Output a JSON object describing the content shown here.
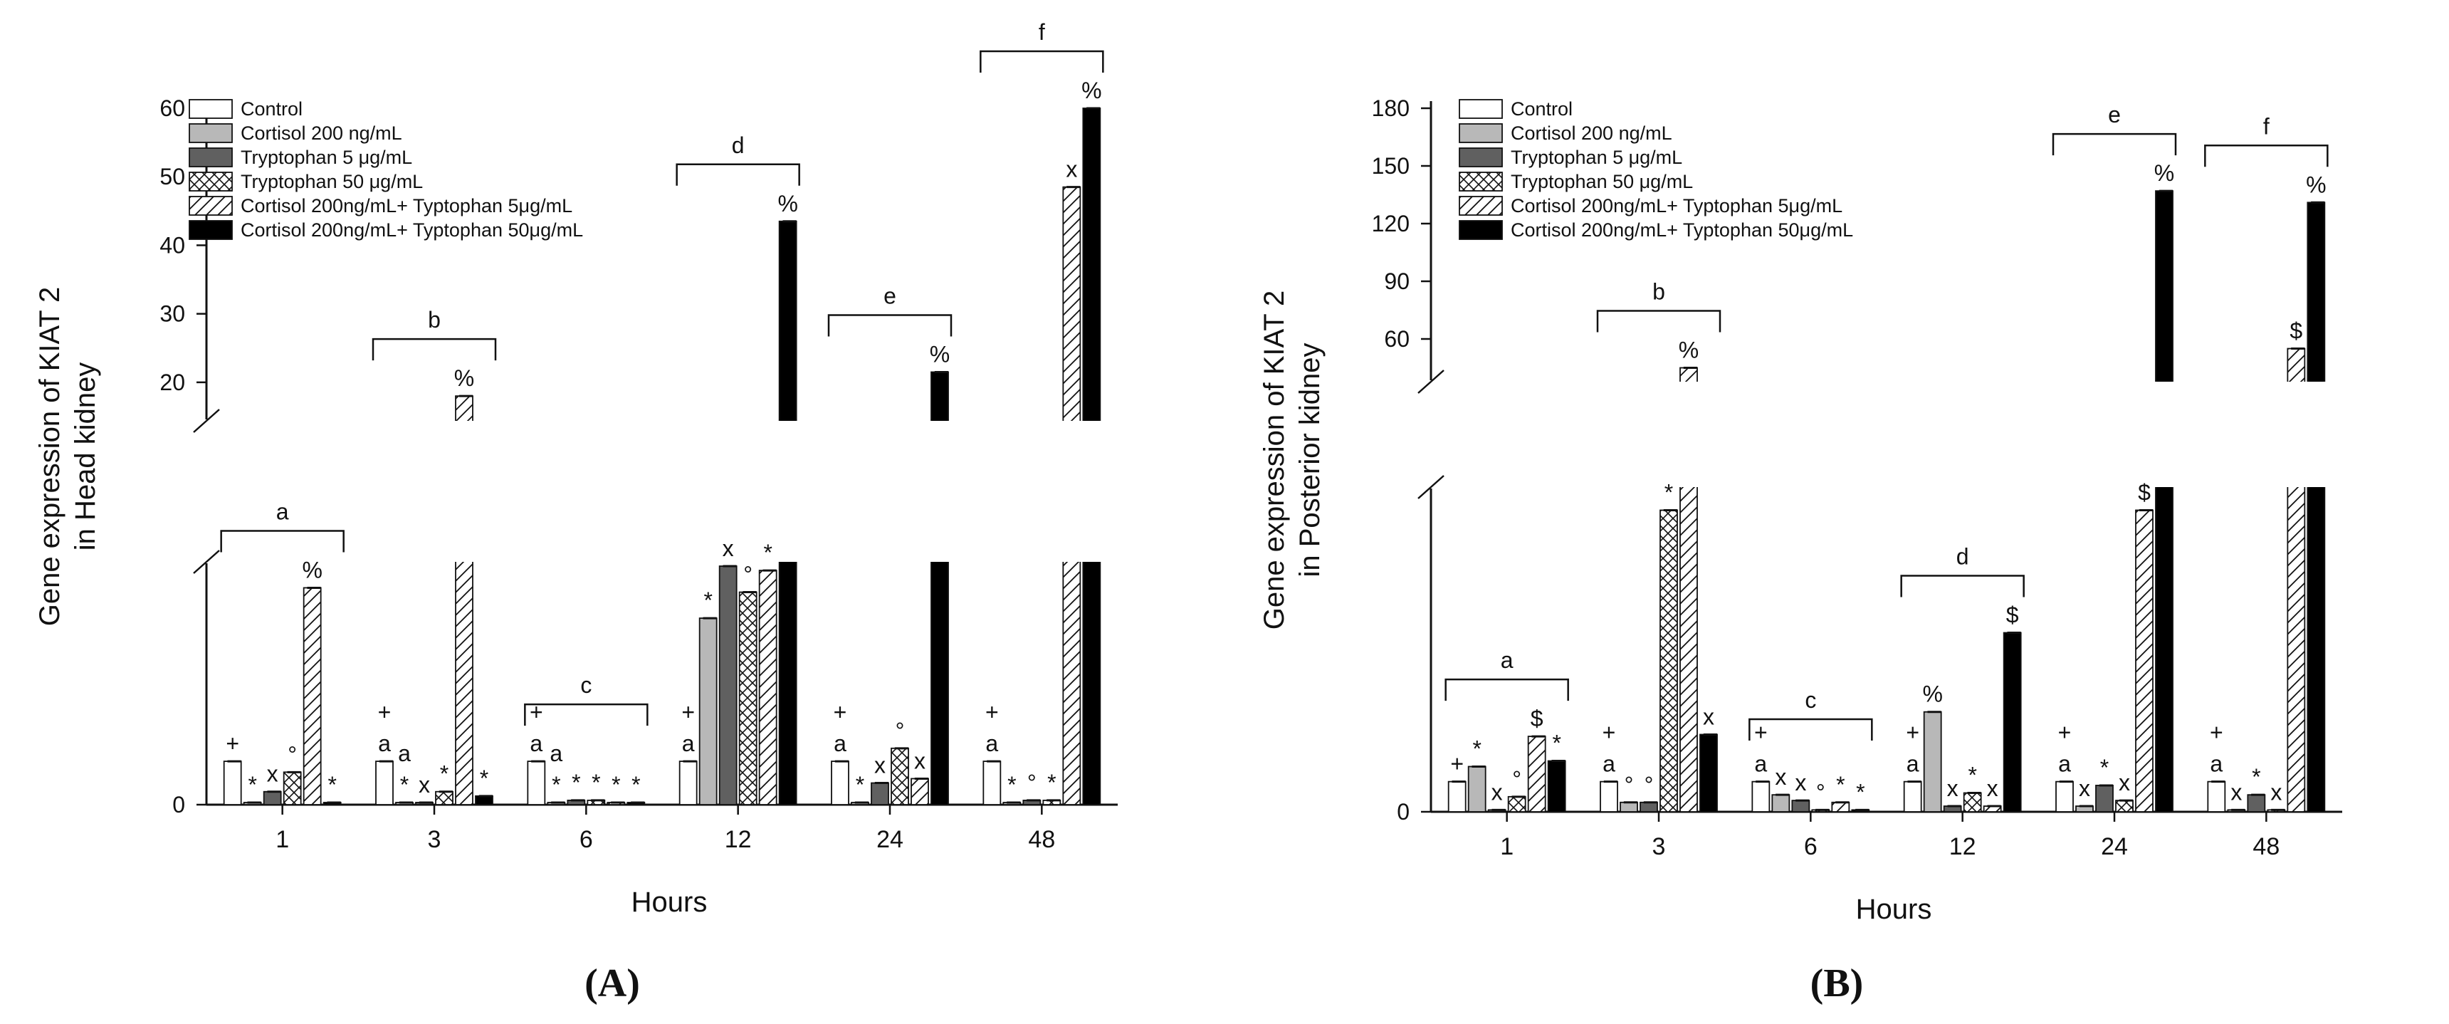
{
  "chart_data": [
    {
      "type": "bar",
      "panel_label": "(A)",
      "xlabel": "Hours",
      "ylabel_line1": "Gene expression of KIAT 2",
      "ylabel_line2": "in Head kidney",
      "y_axis_break": true,
      "lower_segment_ylim": [
        0,
        5.5
      ],
      "upper_segment_ylim": [
        15,
        60
      ],
      "ytick_labels": [
        "0",
        "20",
        "30",
        "40",
        "50",
        "60"
      ],
      "categories": [
        "1",
        "3",
        "6",
        "12",
        "24",
        "48"
      ],
      "legend": [
        "Control",
        "Cortisol 200 ng/mL",
        "Tryptophan 5 μg/mL",
        "Tryptophan 50 μg/mL",
        "Cortisol 200ng/mL+ Typtophan 5μg/mL",
        "Cortisol 200ng/mL+ Typtophan 50μg/mL"
      ],
      "legend_position": "top-left",
      "series": [
        {
          "name": "Control",
          "values": [
            1,
            1,
            1,
            1,
            1,
            1
          ]
        },
        {
          "name": "Cortisol 200 ng/mL",
          "values": [
            0.05,
            0.05,
            0.05,
            4.3,
            0.05,
            0.05
          ]
        },
        {
          "name": "Tryptophan 5 μg/mL",
          "values": [
            0.3,
            0.05,
            0.1,
            5.5,
            0.5,
            0.1
          ]
        },
        {
          "name": "Tryptophan 50 μg/mL",
          "values": [
            0.75,
            0.3,
            0.1,
            4.9,
            1.3,
            0.1
          ]
        },
        {
          "name": "Cortisol 200ng/mL+ Typtophan 5μg/mL",
          "values": [
            5.0,
            18,
            0.05,
            5.4,
            0.6,
            48.5
          ]
        },
        {
          "name": "Cortisol 200ng/mL+ Typtophan 50μg/mL",
          "values": [
            0.05,
            0.2,
            0.05,
            43.5,
            21.5,
            60
          ]
        }
      ],
      "brackets": [
        {
          "group": "1",
          "label": "a"
        },
        {
          "group": "3",
          "label": "b"
        },
        {
          "group": "6",
          "label": "c"
        },
        {
          "group": "12",
          "label": "d"
        },
        {
          "group": "24",
          "label": "e"
        },
        {
          "group": "48",
          "label": "f"
        }
      ],
      "markers": [
        [
          "+",
          "*",
          "x",
          "°",
          "%",
          "*"
        ],
        [
          "+ a",
          "a *",
          "x",
          "*",
          "%",
          "*"
        ],
        [
          "+ a",
          "a *",
          "*",
          "*",
          "*",
          "*"
        ],
        [
          "+ a",
          "*",
          "x",
          "°",
          "*",
          "%"
        ],
        [
          "+ a",
          "*",
          "x",
          "°",
          "x",
          "%"
        ],
        [
          "+ a",
          "*",
          "°",
          "*",
          "x",
          "%"
        ]
      ]
    },
    {
      "type": "bar",
      "panel_label": "(B)",
      "xlabel": "Hours",
      "ylabel_line1": "Gene expression of KIAT 2",
      "ylabel_line2": "in Posterior kidney",
      "y_axis_break": true,
      "lower_segment_ylim": [
        0,
        17
      ],
      "upper_segment_ylim": [
        40,
        180
      ],
      "ytick_labels": [
        "0",
        "60",
        "90",
        "120",
        "150",
        "180"
      ],
      "categories": [
        "1",
        "3",
        "6",
        "12",
        "24",
        "48"
      ],
      "legend": [
        "Control",
        "Cortisol 200 ng/mL",
        "Tryptophan 5 μg/mL",
        "Tryptophan 50 μg/mL",
        "Cortisol 200ng/mL+ Typtophan 5μg/mL",
        "Cortisol 200ng/mL+ Typtophan 50μg/mL"
      ],
      "legend_position": "top-left",
      "series": [
        {
          "name": "Control",
          "values": [
            1.6,
            1.6,
            1.6,
            1.6,
            1.6,
            1.6
          ]
        },
        {
          "name": "Cortisol 200 ng/mL",
          "values": [
            2.4,
            0.5,
            0.9,
            5.3,
            0.3,
            0.1
          ]
        },
        {
          "name": "Tryptophan 5 μg/mL",
          "values": [
            0.1,
            0.5,
            0.6,
            0.3,
            1.4,
            0.9
          ]
        },
        {
          "name": "Tryptophan 50 μg/mL",
          "values": [
            0.8,
            16,
            0.1,
            1.0,
            0.6,
            0.1
          ]
        },
        {
          "name": "Cortisol 200ng/mL+ Typtophan 5μg/mL",
          "values": [
            4.0,
            45,
            0.5,
            0.3,
            16,
            55
          ]
        },
        {
          "name": "Cortisol 200ng/mL+ Typtophan 50μg/mL",
          "values": [
            2.7,
            4.1,
            0.1,
            9.5,
            137,
            131
          ]
        }
      ],
      "brackets": [
        {
          "group": "1",
          "label": "a"
        },
        {
          "group": "3",
          "label": "b"
        },
        {
          "group": "6",
          "label": "c"
        },
        {
          "group": "12",
          "label": "d"
        },
        {
          "group": "24",
          "label": "e"
        },
        {
          "group": "48",
          "label": "f"
        }
      ],
      "markers": [
        [
          "+",
          "*",
          "x",
          "°",
          "$",
          "*"
        ],
        [
          "+ a",
          "°",
          "°",
          "*",
          "%",
          "x"
        ],
        [
          "+ a",
          "x",
          "x",
          "°",
          "*",
          "*"
        ],
        [
          "+ a",
          "%",
          "x",
          "*",
          "x",
          "$"
        ],
        [
          "+ a",
          "x",
          "*",
          "x",
          "$",
          "%"
        ],
        [
          "+ a",
          "x",
          "*",
          "x",
          "$",
          "%"
        ]
      ]
    }
  ]
}
